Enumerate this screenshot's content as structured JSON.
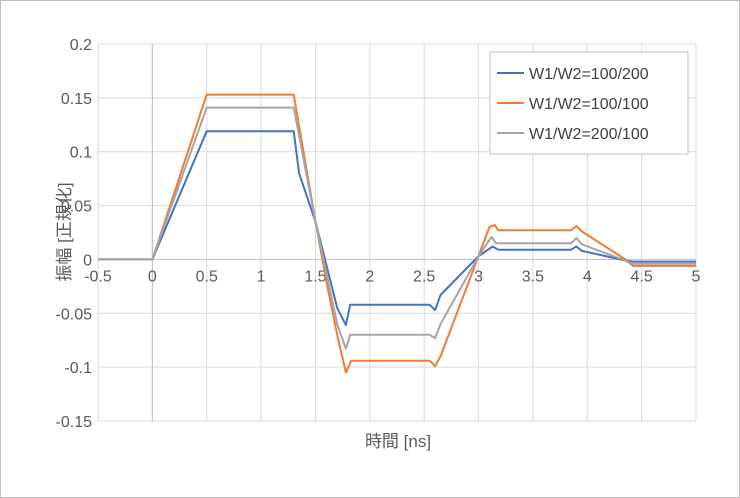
{
  "chart_data": {
    "type": "line",
    "title": "",
    "xlabel": "時間 [ns]",
    "ylabel": "振幅 [正規化]",
    "xlim": [
      -0.5,
      5
    ],
    "ylim": [
      -0.15,
      0.2
    ],
    "x_ticks": [
      -0.5,
      0,
      0.5,
      1,
      1.5,
      2,
      2.5,
      3,
      3.5,
      4,
      4.5,
      5
    ],
    "x_tick_labels": [
      "-0.5",
      "0",
      "0.5",
      "1",
      "1.5",
      "2",
      "2.5",
      "3",
      "3.5",
      "4",
      "4.5",
      "5"
    ],
    "y_ticks": [
      -0.15,
      -0.1,
      -0.05,
      0,
      0.05,
      0.1,
      0.15,
      0.2
    ],
    "y_tick_labels": [
      "-0.15",
      "-0.1",
      "-0.05",
      "0",
      "0.05",
      "0.1",
      "0.15",
      "0.2"
    ],
    "grid": true,
    "legend_position": "top-right",
    "series": [
      {
        "name": "W1/W2=100/200",
        "color": "#4472C4",
        "points": [
          [
            -0.5,
            0
          ],
          [
            0,
            0
          ],
          [
            0.5,
            0.119
          ],
          [
            1.3,
            0.119
          ],
          [
            1.35,
            0.08
          ],
          [
            1.5,
            0.035
          ],
          [
            1.7,
            -0.045
          ],
          [
            1.78,
            -0.061
          ],
          [
            1.82,
            -0.042
          ],
          [
            2.55,
            -0.042
          ],
          [
            2.6,
            -0.047
          ],
          [
            2.65,
            -0.033
          ],
          [
            3.0,
            0.003
          ],
          [
            3.13,
            0.012
          ],
          [
            3.18,
            0.009
          ],
          [
            3.85,
            0.009
          ],
          [
            3.9,
            0.012
          ],
          [
            3.95,
            0.008
          ],
          [
            4.35,
            -0.001
          ],
          [
            4.42,
            -0.002
          ],
          [
            5.0,
            -0.002
          ]
        ]
      },
      {
        "name": "W1/W2=100/100",
        "color": "#ED7D31",
        "points": [
          [
            -0.5,
            0
          ],
          [
            0,
            0
          ],
          [
            0.5,
            0.153
          ],
          [
            1.3,
            0.153
          ],
          [
            1.5,
            0.035
          ],
          [
            1.6,
            -0.02
          ],
          [
            1.7,
            -0.07
          ],
          [
            1.78,
            -0.105
          ],
          [
            1.83,
            -0.094
          ],
          [
            2.55,
            -0.094
          ],
          [
            2.6,
            -0.099
          ],
          [
            2.65,
            -0.09
          ],
          [
            3.0,
            0.003
          ],
          [
            3.1,
            0.03
          ],
          [
            3.15,
            0.032
          ],
          [
            3.18,
            0.027
          ],
          [
            3.85,
            0.027
          ],
          [
            3.9,
            0.031
          ],
          [
            3.95,
            0.026
          ],
          [
            4.35,
            0.0
          ],
          [
            4.42,
            -0.006
          ],
          [
            5.0,
            -0.006
          ]
        ]
      },
      {
        "name": "W1/W2=200/100",
        "color": "#A5A5A5",
        "points": [
          [
            -0.5,
            0
          ],
          [
            0,
            0
          ],
          [
            0.5,
            0.141
          ],
          [
            1.3,
            0.141
          ],
          [
            1.5,
            0.035
          ],
          [
            1.7,
            -0.06
          ],
          [
            1.78,
            -0.083
          ],
          [
            1.82,
            -0.07
          ],
          [
            2.55,
            -0.07
          ],
          [
            2.6,
            -0.073
          ],
          [
            2.65,
            -0.06
          ],
          [
            3.0,
            0.003
          ],
          [
            3.12,
            0.021
          ],
          [
            3.16,
            0.015
          ],
          [
            3.85,
            0.015
          ],
          [
            3.9,
            0.02
          ],
          [
            3.95,
            0.014
          ],
          [
            4.35,
            -0.001
          ],
          [
            4.4,
            -0.004
          ],
          [
            5.0,
            -0.004
          ]
        ]
      }
    ]
  }
}
